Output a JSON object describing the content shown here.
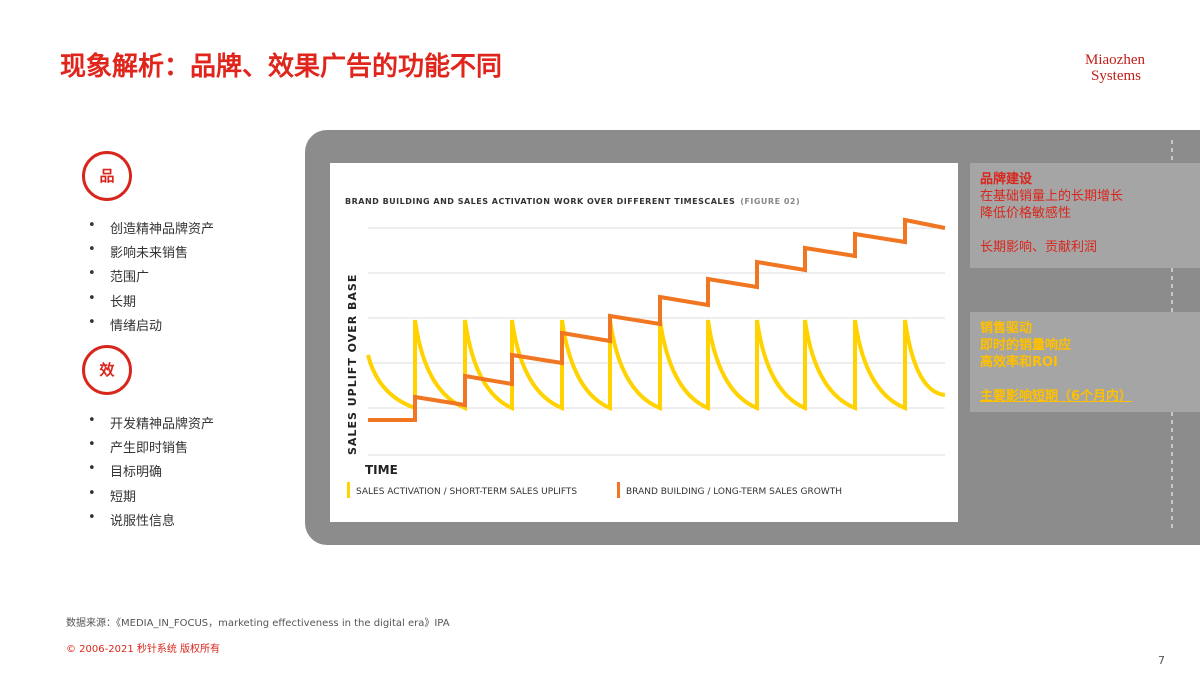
{
  "header": {
    "title": "现象解析：品牌、效果广告的功能不同",
    "logo": [
      "Miaozhen",
      "Systems"
    ]
  },
  "sections": [
    {
      "icon": "品",
      "bullets": [
        "创造精神品牌资产",
        "影响未来销售",
        "范围广",
        "长期",
        "情绪启动"
      ]
    },
    {
      "icon": "效",
      "bullets": [
        "开发精神品牌资产",
        "产生即时销售",
        "目标明确",
        "短期",
        "说服性信息"
      ]
    }
  ],
  "figure": {
    "title": "BRAND BUILDING AND SALES ACTIVATION WORK OVER DIFFERENT TIMESCALES",
    "figure_ref": "(FIGURE 02)",
    "y_label": "SALES UPLIFT OVER BASE",
    "x_label": "TIME",
    "legend": [
      "SALES ACTIVATION / SHORT-TERM SALES UPLIFTS",
      "BRAND BUILDING / LONG-TERM SALES GROWTH"
    ]
  },
  "notes": [
    {
      "heading": "品牌建设",
      "lines": [
        "在基础销量上的长期增长",
        "降低价格敏感性",
        "长期影响、贡献利润"
      ]
    },
    {
      "heading": "销售驱动",
      "lines": [
        "即时的销量响应",
        "高效率和ROI",
        "主要影响短期（6个月内）"
      ]
    }
  ],
  "footer": {
    "source": "数据来源：《MEDIA_IN_FOCUS，marketing effectiveness in the digital era》IPA",
    "copyright": "© 2006-2021 秒针系统 版权所有",
    "page": "7"
  }
}
